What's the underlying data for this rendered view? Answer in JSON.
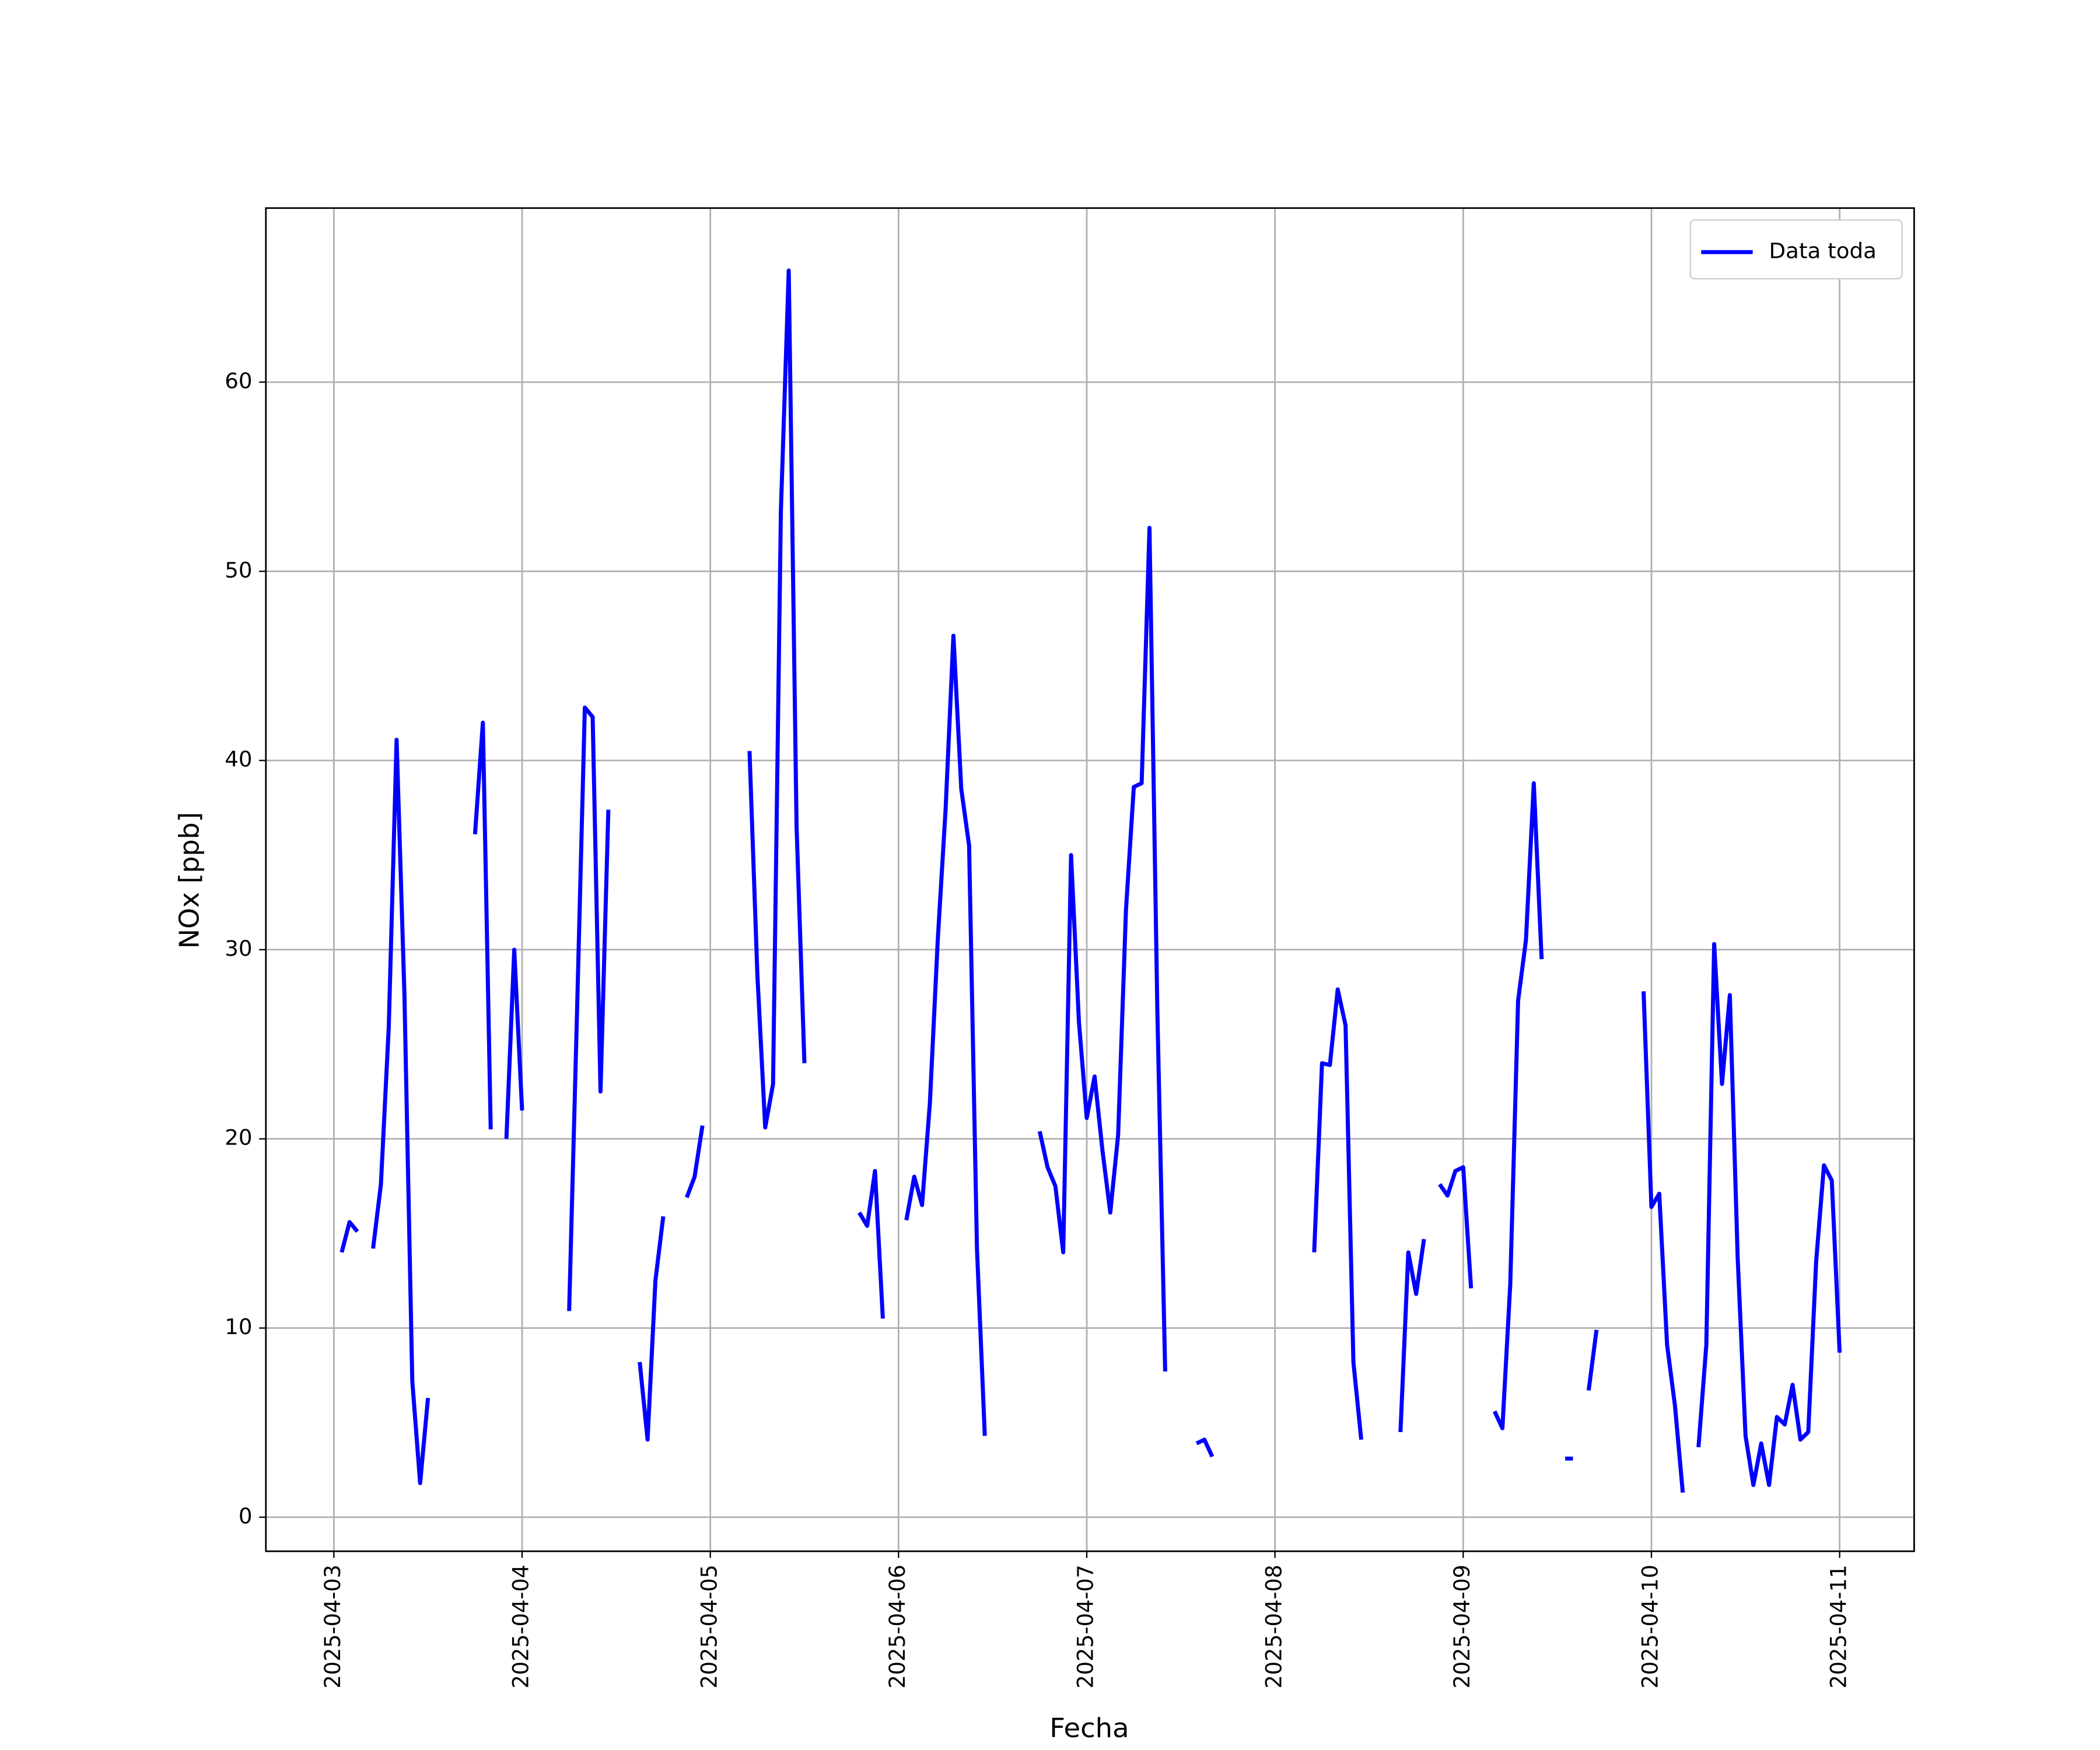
{
  "chart_data": {
    "type": "line",
    "xlabel": "Fecha",
    "ylabel": "NOx [ppb]",
    "xlim": [
      "2025-04-02T15:20",
      "2025-04-11T09:30"
    ],
    "xticks": [
      "2025-04-03",
      "2025-04-04",
      "2025-04-05",
      "2025-04-06",
      "2025-04-07",
      "2025-04-08",
      "2025-04-09",
      "2025-04-10",
      "2025-04-11"
    ],
    "ylim": [
      -1.8,
      69.2
    ],
    "yticks": [
      0,
      10,
      20,
      30,
      40,
      50,
      60
    ],
    "grid": true,
    "legend": "upper right",
    "x": [
      "2025-04-03T01:00",
      "2025-04-03T02:00",
      "2025-04-03T03:00",
      "2025-04-03T04:00",
      "2025-04-03T05:00",
      "2025-04-03T06:00",
      "2025-04-03T07:00",
      "2025-04-03T08:00",
      "2025-04-03T09:00",
      "2025-04-03T10:00",
      "2025-04-03T11:00",
      "2025-04-03T12:00",
      "2025-04-03T13:00",
      "2025-04-03T18:00",
      "2025-04-03T19:00",
      "2025-04-03T20:00",
      "2025-04-03T21:00",
      "2025-04-03T22:00",
      "2025-04-03T23:00",
      "2025-04-04T00:00",
      "2025-04-04T01:00",
      "2025-04-04T06:00",
      "2025-04-04T07:00",
      "2025-04-04T08:00",
      "2025-04-04T09:00",
      "2025-04-04T10:00",
      "2025-04-04T11:00",
      "2025-04-04T12:00",
      "2025-04-04T15:00",
      "2025-04-04T16:00",
      "2025-04-04T17:00",
      "2025-04-04T18:00",
      "2025-04-04T19:00",
      "2025-04-04T21:00",
      "2025-04-04T22:00",
      "2025-04-04T23:00",
      "2025-04-05T00:00",
      "2025-04-05T05:00",
      "2025-04-05T06:00",
      "2025-04-05T07:00",
      "2025-04-05T08:00",
      "2025-04-05T09:00",
      "2025-04-05T10:00",
      "2025-04-05T11:00",
      "2025-04-05T12:00",
      "2025-04-05T13:00",
      "2025-04-05T19:00",
      "2025-04-05T20:00",
      "2025-04-05T21:00",
      "2025-04-05T22:00",
      "2025-04-05T23:00",
      "2025-04-06T01:00",
      "2025-04-06T02:00",
      "2025-04-06T03:00",
      "2025-04-06T04:00",
      "2025-04-06T05:00",
      "2025-04-06T06:00",
      "2025-04-06T07:00",
      "2025-04-06T08:00",
      "2025-04-06T09:00",
      "2025-04-06T10:00",
      "2025-04-06T11:00",
      "2025-04-06T12:00",
      "2025-04-06T18:00",
      "2025-04-06T19:00",
      "2025-04-06T20:00",
      "2025-04-06T21:00",
      "2025-04-06T22:00",
      "2025-04-06T23:00",
      "2025-04-07T00:00",
      "2025-04-07T01:00",
      "2025-04-07T02:00",
      "2025-04-07T03:00",
      "2025-04-07T04:00",
      "2025-04-07T05:00",
      "2025-04-07T06:00",
      "2025-04-07T07:00",
      "2025-04-07T08:00",
      "2025-04-07T09:00",
      "2025-04-07T10:00",
      "2025-04-07T11:00",
      "2025-04-07T14:00",
      "2025-04-07T15:00",
      "2025-04-07T16:00",
      "2025-04-07T17:00",
      "2025-04-08T05:00",
      "2025-04-08T06:00",
      "2025-04-08T07:00",
      "2025-04-08T08:00",
      "2025-04-08T09:00",
      "2025-04-08T10:00",
      "2025-04-08T11:00",
      "2025-04-08T12:00",
      "2025-04-08T16:00",
      "2025-04-08T17:00",
      "2025-04-08T18:00",
      "2025-04-08T19:00",
      "2025-04-08T20:00",
      "2025-04-08T21:00",
      "2025-04-08T22:00",
      "2025-04-08T23:00",
      "2025-04-09T00:00",
      "2025-04-09T01:00",
      "2025-04-09T02:00",
      "2025-04-09T04:00",
      "2025-04-09T05:00",
      "2025-04-09T06:00",
      "2025-04-09T07:00",
      "2025-04-09T08:00",
      "2025-04-09T09:00",
      "2025-04-09T10:00",
      "2025-04-09T11:00",
      "2025-04-09T13:00",
      "2025-04-09T14:00",
      "2025-04-09T15:00",
      "2025-04-09T16:00",
      "2025-04-09T17:00",
      "2025-04-09T18:00",
      "2025-04-09T23:00",
      "2025-04-10T00:00",
      "2025-04-10T01:00",
      "2025-04-10T02:00",
      "2025-04-10T03:00",
      "2025-04-10T04:00",
      "2025-04-10T05:00",
      "2025-04-10T06:00",
      "2025-04-10T07:00",
      "2025-04-10T08:00",
      "2025-04-10T09:00",
      "2025-04-10T10:00",
      "2025-04-10T11:00",
      "2025-04-10T12:00",
      "2025-04-10T13:00",
      "2025-04-10T14:00",
      "2025-04-10T15:00",
      "2025-04-10T16:00",
      "2025-04-10T17:00",
      "2025-04-10T18:00",
      "2025-04-10T19:00",
      "2025-04-10T20:00",
      "2025-04-10T21:00",
      "2025-04-10T22:00",
      "2025-04-10T23:00",
      "2025-04-11T00:00"
    ],
    "series": [
      {
        "name": "Data toda",
        "color": "#0000ff",
        "values": [
          14.0,
          15.6,
          15.1,
          null,
          14.2,
          17.6,
          25.9,
          41.1,
          27.6,
          7.2,
          1.8,
          6.3,
          null,
          36.1,
          42.0,
          20.5,
          null,
          20.0,
          30.0,
          21.5,
          null,
          10.9,
          26.6,
          42.8,
          42.3,
          22.5,
          37.4,
          null,
          8.2,
          4.1,
          12.5,
          15.9,
          null,
          16.9,
          18.0,
          20.7,
          null,
          40.5,
          28.7,
          20.6,
          22.9,
          53.2,
          65.9,
          36.5,
          24.0,
          null,
          16.1,
          15.4,
          18.3,
          10.5,
          null,
          15.7,
          18.0,
          16.5,
          21.9,
          30.5,
          37.4,
          46.6,
          38.5,
          35.5,
          14.2,
          4.3,
          null,
          20.4,
          18.5,
          17.5,
          14.0,
          35.0,
          26.2,
          21.1,
          23.3,
          19.4,
          16.1,
          20.2,
          32.1,
          38.6,
          38.8,
          52.3,
          26.8,
          7.7,
          null,
          3.9,
          4.1,
          3.2,
          null,
          14.0,
          24.0,
          23.9,
          27.9,
          26.0,
          8.2,
          4.1,
          null,
          4.5,
          14.0,
          11.8,
          14.7,
          null,
          17.6,
          17.0,
          18.3,
          18.5,
          12.1,
          null,
          5.6,
          4.7,
          12.3,
          27.3,
          30.5,
          38.8,
          29.5,
          null,
          3.1,
          3.1,
          null,
          6.7,
          9.9,
          null,
          27.8,
          16.4,
          17.1,
          9.1,
          5.9,
          1.3,
          null,
          3.7,
          9.1,
          30.3,
          22.9,
          27.6,
          13.7,
          4.3,
          1.7,
          3.9,
          1.7,
          5.3,
          4.9,
          7.0,
          4.1,
          4.5,
          13.5,
          18.6,
          17.8,
          8.7
        ]
      }
    ]
  }
}
